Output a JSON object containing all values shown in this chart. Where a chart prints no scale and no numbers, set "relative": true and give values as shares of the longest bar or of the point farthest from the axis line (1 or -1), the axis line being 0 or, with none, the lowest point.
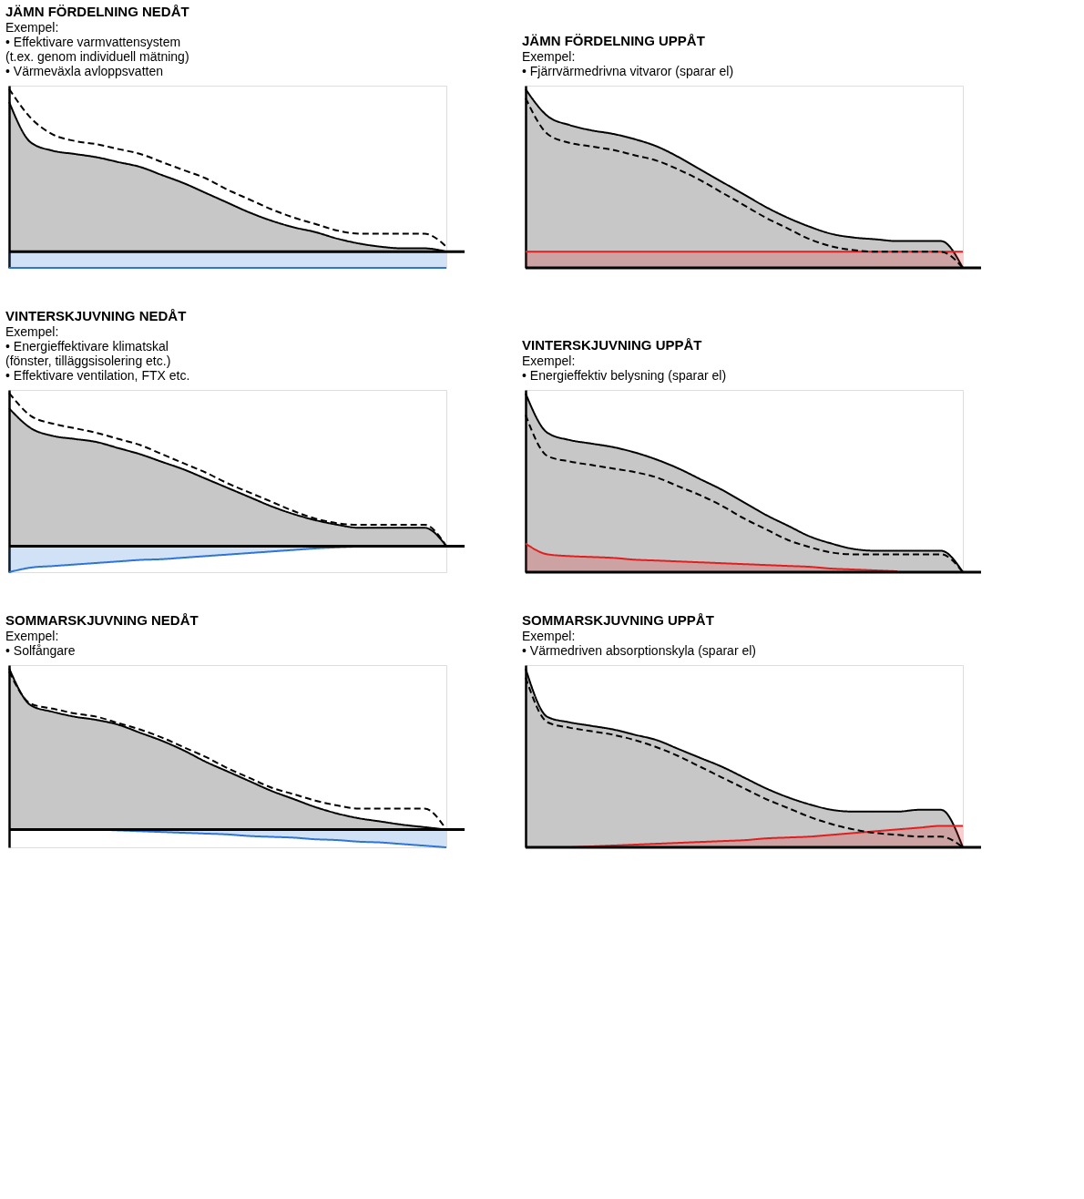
{
  "chart_data": [
    {
      "type": "area",
      "relative": true,
      "title": "JÄMN FÖRDELNING NEDÅT",
      "annotations": [
        "Exempel:",
        "•       Effektivare varmvattensystem",
        "         (t.ex. genom individuell mätning)",
        "•       Värmeväxla avloppsvatten"
      ],
      "grid": false,
      "tick_labels": false,
      "categories": [
        null,
        null,
        null,
        null,
        null,
        null,
        null,
        null,
        null,
        null,
        null,
        null,
        null,
        null,
        null,
        null,
        null,
        null,
        null,
        null,
        null
      ],
      "series": [
        {
          "type": "area",
          "color": "#000000",
          "values": [
            0.92,
            0.67,
            0.62,
            0.6,
            0.58,
            0.55,
            0.52,
            0.47,
            0.42,
            0.36,
            0.3,
            0.24,
            0.19,
            0.15,
            0.12,
            0.08,
            0.05,
            0.03,
            0.02,
            0.02,
            0.0
          ]
        },
        {
          "type": "line",
          "line_style": "dashed",
          "color": "#000000",
          "values": [
            1.0,
            0.82,
            0.72,
            0.68,
            0.66,
            0.63,
            0.6,
            0.55,
            0.5,
            0.45,
            0.38,
            0.32,
            0.26,
            0.21,
            0.17,
            0.13,
            0.11,
            0.11,
            0.11,
            0.11,
            0.03
          ]
        },
        {
          "type": "area",
          "color": "#2e75d6",
          "values": [
            -0.1,
            -0.1,
            -0.1,
            -0.1,
            -0.1,
            -0.1,
            -0.1,
            -0.1,
            -0.1,
            -0.1,
            -0.1,
            -0.1,
            -0.1,
            -0.1,
            -0.1,
            -0.1,
            -0.1,
            -0.1,
            -0.1,
            -0.1,
            -0.1
          ]
        }
      ]
    },
    {
      "type": "area",
      "relative": true,
      "title": "JÄMN FÖRDELNING UPPÅT",
      "annotations": [
        "Exempel:",
        "•       Fjärrvärmedrivna vitvaror (sparar el)"
      ],
      "grid": false,
      "tick_labels": false,
      "categories": [
        null,
        null,
        null,
        null,
        null,
        null,
        null,
        null,
        null,
        null,
        null,
        null,
        null,
        null,
        null,
        null,
        null,
        null,
        null,
        null,
        null
      ],
      "series": [
        {
          "type": "area",
          "color": "#000000",
          "values": [
            1.0,
            0.85,
            0.8,
            0.77,
            0.75,
            0.72,
            0.68,
            0.62,
            0.55,
            0.48,
            0.41,
            0.34,
            0.28,
            0.23,
            0.19,
            0.17,
            0.16,
            0.15,
            0.15,
            0.15,
            0.0
          ]
        },
        {
          "type": "line",
          "line_style": "dashed",
          "color": "#000000",
          "values": [
            0.95,
            0.75,
            0.7,
            0.68,
            0.66,
            0.63,
            0.6,
            0.55,
            0.49,
            0.42,
            0.35,
            0.28,
            0.22,
            0.16,
            0.12,
            0.1,
            0.09,
            0.09,
            0.09,
            0.09,
            0.0
          ]
        },
        {
          "type": "area",
          "color": "#e02020",
          "values": [
            0.09,
            0.09,
            0.09,
            0.09,
            0.09,
            0.09,
            0.09,
            0.09,
            0.09,
            0.09,
            0.09,
            0.09,
            0.09,
            0.09,
            0.09,
            0.09,
            0.09,
            0.09,
            0.09,
            0.09,
            0.09
          ]
        }
      ]
    },
    {
      "type": "area",
      "relative": true,
      "title": "VINTERSKJUVNING NEDÅT",
      "annotations": [
        "Exempel:",
        "•       Energieffektivare klimatskal",
        "         (fönster, tilläggsisolering etc.)",
        "•       Effektivare ventilation, FTX etc."
      ],
      "grid": false,
      "tick_labels": false,
      "categories": [
        null,
        null,
        null,
        null,
        null,
        null,
        null,
        null,
        null,
        null,
        null,
        null,
        null,
        null,
        null,
        null,
        null,
        null,
        null,
        null,
        null
      ],
      "series": [
        {
          "type": "area",
          "color": "#000000",
          "values": [
            0.9,
            0.77,
            0.72,
            0.7,
            0.68,
            0.64,
            0.6,
            0.55,
            0.5,
            0.44,
            0.38,
            0.32,
            0.26,
            0.21,
            0.17,
            0.14,
            0.12,
            0.12,
            0.12,
            0.12,
            0.0
          ]
        },
        {
          "type": "line",
          "line_style": "dashed",
          "color": "#000000",
          "values": [
            1.0,
            0.85,
            0.8,
            0.77,
            0.74,
            0.7,
            0.66,
            0.6,
            0.54,
            0.48,
            0.41,
            0.35,
            0.29,
            0.23,
            0.18,
            0.15,
            0.14,
            0.14,
            0.14,
            0.14,
            0.0
          ]
        },
        {
          "type": "area",
          "color": "#2e75d6",
          "values": [
            -0.17,
            -0.14,
            -0.13,
            -0.12,
            -0.11,
            -0.1,
            -0.09,
            -0.085,
            -0.075,
            -0.065,
            -0.055,
            -0.045,
            -0.035,
            -0.025,
            -0.015,
            -0.008,
            -0.003,
            0.0,
            null,
            null,
            null
          ]
        }
      ]
    },
    {
      "type": "area",
      "relative": true,
      "title": "VINTERSKJUVNING UPPÅT",
      "annotations": [
        "Exempel:",
        "•       Energieffektiv belysning (sparar el)"
      ],
      "grid": false,
      "tick_labels": false,
      "categories": [
        null,
        null,
        null,
        null,
        null,
        null,
        null,
        null,
        null,
        null,
        null,
        null,
        null,
        null,
        null,
        null,
        null,
        null,
        null,
        null,
        null
      ],
      "series": [
        {
          "type": "area",
          "color": "#000000",
          "values": [
            1.0,
            0.78,
            0.74,
            0.72,
            0.7,
            0.67,
            0.63,
            0.58,
            0.52,
            0.46,
            0.39,
            0.32,
            0.26,
            0.2,
            0.16,
            0.13,
            0.12,
            0.12,
            0.12,
            0.12,
            0.0
          ]
        },
        {
          "type": "line",
          "line_style": "dashed",
          "color": "#000000",
          "values": [
            0.88,
            0.65,
            0.62,
            0.6,
            0.58,
            0.56,
            0.53,
            0.48,
            0.43,
            0.37,
            0.3,
            0.24,
            0.18,
            0.14,
            0.11,
            0.1,
            0.1,
            0.1,
            0.1,
            0.1,
            0.0
          ]
        },
        {
          "type": "area",
          "color": "#e02020",
          "values": [
            0.16,
            0.1,
            0.09,
            0.085,
            0.08,
            0.07,
            0.065,
            0.06,
            0.055,
            0.05,
            0.045,
            0.04,
            0.035,
            0.03,
            0.02,
            0.015,
            0.01,
            0.005,
            null,
            null,
            null
          ]
        }
      ]
    },
    {
      "type": "area",
      "relative": true,
      "title": "SOMMARSKJUVNING NEDÅT",
      "annotations": [
        "Exempel:",
        "•       Solfångare"
      ],
      "grid": false,
      "tick_labels": false,
      "categories": [
        null,
        null,
        null,
        null,
        null,
        null,
        null,
        null,
        null,
        null,
        null,
        null,
        null,
        null,
        null,
        null,
        null,
        null,
        null,
        null,
        null
      ],
      "series": [
        {
          "type": "area",
          "color": "#000000",
          "values": [
            1.0,
            0.77,
            0.73,
            0.7,
            0.68,
            0.65,
            0.6,
            0.55,
            0.49,
            0.42,
            0.36,
            0.3,
            0.24,
            0.19,
            0.14,
            0.1,
            0.07,
            0.05,
            0.03,
            0.015,
            0.0
          ]
        },
        {
          "type": "line",
          "line_style": "dashed",
          "color": "#000000",
          "values": [
            0.98,
            0.78,
            0.75,
            0.72,
            0.7,
            0.66,
            0.62,
            0.57,
            0.51,
            0.45,
            0.38,
            0.32,
            0.26,
            0.22,
            0.18,
            0.15,
            0.13,
            0.13,
            0.13,
            0.13,
            0.0
          ]
        },
        {
          "type": "area",
          "color": "#2e75d6",
          "values": [
            null,
            null,
            null,
            null,
            0.0,
            -0.005,
            -0.01,
            -0.015,
            -0.02,
            -0.025,
            -0.03,
            -0.04,
            -0.045,
            -0.05,
            -0.06,
            -0.065,
            -0.075,
            -0.08,
            -0.09,
            -0.1,
            -0.11
          ]
        }
      ]
    },
    {
      "type": "area",
      "relative": true,
      "title": "SOMMARSKJUVNING UPPÅT",
      "annotations": [
        "Exempel:",
        "•       Värmedriven absorptionskyla (sparar el)"
      ],
      "grid": false,
      "tick_labels": false,
      "categories": [
        null,
        null,
        null,
        null,
        null,
        null,
        null,
        null,
        null,
        null,
        null,
        null,
        null,
        null,
        null,
        null,
        null,
        null,
        null,
        null,
        null
      ],
      "series": [
        {
          "type": "area",
          "color": "#000000",
          "values": [
            1.0,
            0.73,
            0.7,
            0.68,
            0.66,
            0.63,
            0.6,
            0.55,
            0.5,
            0.45,
            0.39,
            0.33,
            0.28,
            0.24,
            0.21,
            0.2,
            0.2,
            0.2,
            0.21,
            0.21,
            0.0
          ]
        },
        {
          "type": "line",
          "line_style": "dashed",
          "color": "#000000",
          "values": [
            0.95,
            0.7,
            0.67,
            0.65,
            0.63,
            0.6,
            0.56,
            0.51,
            0.45,
            0.39,
            0.33,
            0.27,
            0.22,
            0.17,
            0.13,
            0.1,
            0.08,
            0.07,
            0.06,
            0.06,
            0.0
          ]
        },
        {
          "type": "area",
          "color": "#e02020",
          "values": [
            null,
            null,
            0.0,
            0.005,
            0.01,
            0.015,
            0.02,
            0.025,
            0.03,
            0.035,
            0.04,
            0.05,
            0.055,
            0.06,
            0.07,
            0.08,
            0.09,
            0.1,
            0.11,
            0.12,
            0.12
          ]
        }
      ]
    }
  ]
}
